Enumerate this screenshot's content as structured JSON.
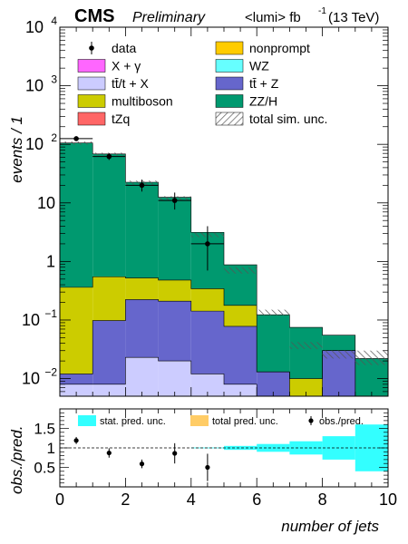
{
  "colors": {
    "x_gamma": "#ff66ff",
    "ttx": "#ccccff",
    "multiboson": "#cccc00",
    "tzq": "#ff6666",
    "nonprompt": "#ffcc00",
    "wz": "#66ffff",
    "ttz": "#6666cc",
    "zzh": "#00996f",
    "stat_band": "#33ffff",
    "total_band": "#ffcc66"
  },
  "chart_data": {
    "type": "bar",
    "title": "",
    "header": {
      "experiment": "CMS",
      "status": "Preliminary",
      "lumi": "<lumi> fb",
      "lumi_exp": "-1",
      "energy": "(13 TeV)"
    },
    "xlabel": "number of jets",
    "ylabel": "events / 1",
    "ratio_ylabel": "obs./pred.",
    "xlim": [
      0,
      10
    ],
    "ylim": [
      0.005,
      10000
    ],
    "yscale": "log",
    "ratio_ylim": [
      0,
      2
    ],
    "bin_edges": [
      0,
      1,
      2,
      3,
      4,
      5,
      6,
      7,
      8,
      9,
      10
    ],
    "stack": [
      {
        "key": "ttx",
        "values": [
          0.008,
          0.008,
          0.023,
          0.02,
          0.012,
          0.008,
          0.005,
          0.004,
          0.003,
          0.002
        ]
      },
      {
        "key": "ttz",
        "values": [
          0.004,
          0.09,
          0.2,
          0.19,
          0.13,
          0.07,
          0.008,
          0.0,
          0.027,
          0.0
        ]
      },
      {
        "key": "multiboson",
        "values": [
          0.35,
          0.45,
          0.3,
          0.27,
          0.2,
          0.1,
          0.0,
          0.006,
          0.0,
          0.0
        ]
      },
      {
        "key": "zzh",
        "values": [
          105.0,
          68.0,
          22.0,
          12.0,
          2.8,
          0.7,
          0.11,
          0.065,
          0.025,
          0.02
        ]
      }
    ],
    "sim_unc": {
      "key": "total sim. unc.",
      "up": [
        112.0,
        72.0,
        24.0,
        13.0,
        3.1,
        0.8,
        0.15,
        0.042,
        0.03,
        0.03
      ],
      "down": [
        98.0,
        64.0,
        20.0,
        11.0,
        2.6,
        0.62,
        0.12,
        0.032,
        0.022,
        0.017
      ]
    },
    "data": {
      "x": [
        0.5,
        1.5,
        2.5,
        3.5,
        4.5
      ],
      "y": [
        125.0,
        62.0,
        20.0,
        11.0,
        2.0
      ],
      "err_lo": [
        11.0,
        7.9,
        4.4,
        3.3,
        1.3
      ],
      "err_hi": [
        12.0,
        8.5,
        5.0,
        4.0,
        2.0
      ]
    },
    "legend": [
      {
        "label": "data",
        "kind": "marker"
      },
      {
        "label": "nonprompt",
        "key": "nonprompt",
        "kind": "box"
      },
      {
        "label": "X +  γ",
        "key": "x_gamma",
        "kind": "box"
      },
      {
        "label": "WZ",
        "key": "wz",
        "kind": "box"
      },
      {
        "label": "tt̄/t + X",
        "key": "ttx",
        "kind": "box"
      },
      {
        "label": "tt̄ + Z",
        "key": "ttz",
        "kind": "box"
      },
      {
        "label": "multiboson",
        "key": "multiboson",
        "kind": "box"
      },
      {
        "label": "ZZ/H",
        "key": "zzh",
        "kind": "box"
      },
      {
        "label": "tZq",
        "key": "tzq",
        "kind": "box"
      },
      {
        "label": "total sim. unc.",
        "kind": "hatch"
      }
    ],
    "ratio": {
      "legend": [
        {
          "label": "stat. pred. unc.",
          "key": "stat_band"
        },
        {
          "label": "total pred. unc.",
          "key": "total_band"
        },
        {
          "label": "obs./pred.",
          "key": "marker"
        }
      ],
      "band_half_width": [
        0.0,
        0.0,
        0.0,
        0.0,
        0.01,
        0.05,
        0.1,
        0.17,
        0.3,
        0.6
      ],
      "points": {
        "x": [
          0.5,
          1.5,
          2.5,
          3.5,
          4.5
        ],
        "y": [
          1.19,
          0.87,
          0.59,
          0.86,
          0.5
        ],
        "err": [
          0.09,
          0.12,
          0.11,
          0.26,
          0.35
        ]
      },
      "yticks": [
        0.5,
        1,
        1.5
      ],
      "ytick_labels": [
        "0.5",
        "1",
        "1.5"
      ],
      "xticks": [
        0,
        2,
        4,
        6,
        8,
        10
      ],
      "xtick_labels": [
        "0",
        "2",
        "4",
        "6",
        "8",
        "10"
      ]
    },
    "yticks_main": [
      0.01,
      0.1,
      1,
      10,
      100,
      1000,
      10000
    ],
    "ytick_labels_main": [
      {
        "base": "10",
        "exp": "−2"
      },
      {
        "base": "10",
        "exp": "−1"
      },
      {
        "base": "1",
        "exp": ""
      },
      {
        "base": "10",
        "exp": ""
      },
      {
        "base": "10",
        "exp": "2"
      },
      {
        "base": "10",
        "exp": "3"
      },
      {
        "base": "10",
        "exp": "4"
      }
    ]
  }
}
